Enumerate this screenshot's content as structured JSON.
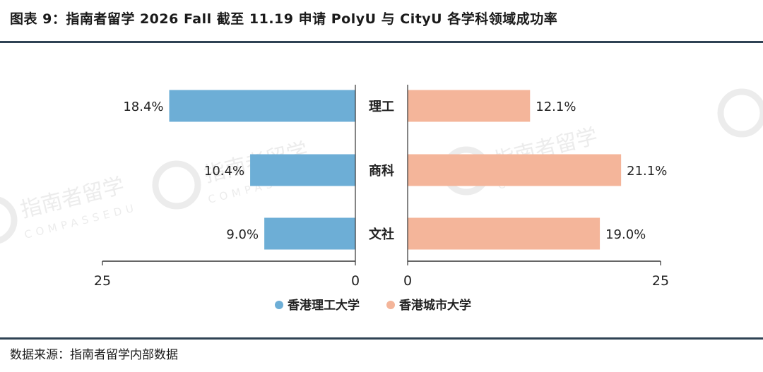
{
  "header": {
    "title": "图表 9：指南者留学 2026 Fall 截至 11.19 申请 PolyU 与 CityU 各学科领域成功率"
  },
  "footer": {
    "source": "数据来源：指南者留学内部数据"
  },
  "watermark": {
    "brand_cn": "指南者留学",
    "brand_en": "COMPASSEDU"
  },
  "chart_data": {
    "type": "bar",
    "orientation": "horizontal-butterfly",
    "categories": [
      "理工",
      "商科",
      "文社"
    ],
    "series": [
      {
        "name": "香港理工大学",
        "values": [
          18.4,
          10.4,
          9.0
        ],
        "color": "#6daed6",
        "side": "left"
      },
      {
        "name": "香港城市大学",
        "values": [
          12.1,
          21.1,
          19.0
        ],
        "color": "#f4b59a",
        "side": "right"
      }
    ],
    "value_labels": {
      "香港理工大学": [
        "18.4%",
        "10.4%",
        "9.0%"
      ],
      "香港城市大学": [
        "12.1%",
        "21.1%",
        "19.0%"
      ]
    },
    "xlim": [
      0,
      25
    ],
    "tick_labels": {
      "left": [
        "25",
        "0"
      ],
      "right": [
        "0",
        "25"
      ]
    },
    "legend_position": "bottom-center",
    "grid": false
  }
}
